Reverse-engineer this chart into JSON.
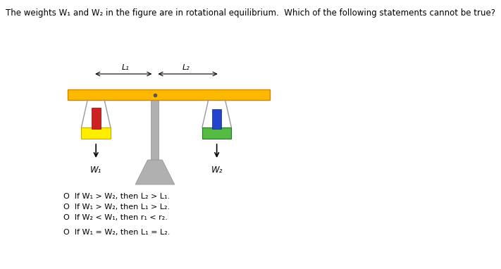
{
  "title": "The weights W₁ and W₂ in the figure are in rotational equilibrium.  Which of the following statements cannot be true?",
  "title_fontsize": 8.5,
  "bg_color": "#ffffff",
  "beam_color": "#FFB800",
  "beam_edge_color": "#CC8800",
  "stand_color": "#B0B0B0",
  "stand_edge_color": "#909090",
  "tray1_color": "#FFEE00",
  "tray1_edge": "#CCAA00",
  "tray2_color": "#55BB44",
  "tray2_edge": "#227722",
  "wt1_color": "#CC2222",
  "wt1_edge": "#880000",
  "wt2_color": "#2244CC",
  "wt2_edge": "#112288",
  "string_color": "#999999",
  "options": [
    "O  If W₁ > W₂, then L₂ > L₁.",
    "O  If W₁ > W₂, then L₁ > L₂.",
    "O  If W₂ < W₁, then r₁ < r₂.",
    "O  If W₁ = W₂, then L₁ = L₂."
  ],
  "options_fontsize": 8.0,
  "L1_label": "L₁",
  "L2_label": "L₂",
  "W1_label": "W₁",
  "W2_label": "W₂"
}
